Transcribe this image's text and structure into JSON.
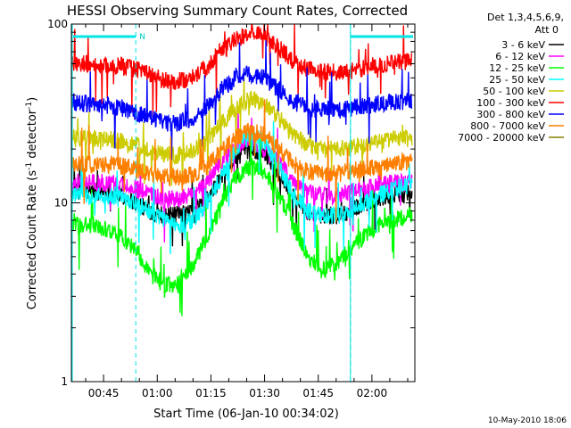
{
  "chart_data": {
    "type": "line",
    "title": "HESSI Observing Summary Count Rates, Corrected",
    "xlabel": "Start Time (06-Jan-10 00:34:02)",
    "ylabel": "Corrected Count Rate (s⁻¹ detector⁻¹)",
    "ylabel_parts": {
      "base": "Corrected Count Rate (s",
      "sup1": "-1",
      "mid": " detector",
      "sup2": "-1",
      "end": ")"
    },
    "date_stamp": "10-May-2010 18:06",
    "x_unit": "minutes",
    "xlim": [
      36,
      132
    ],
    "ylim": [
      1,
      100
    ],
    "yscale": "log",
    "y_tick_labels": [
      {
        "value": 1,
        "label": "1"
      },
      {
        "value": 10,
        "label": "10"
      },
      {
        "value": 100,
        "label": "100"
      }
    ],
    "x_tick_labels": [
      {
        "value": 45,
        "label": "00:45"
      },
      {
        "value": 60,
        "label": "01:00"
      },
      {
        "value": 75,
        "label": "01:15"
      },
      {
        "value": 90,
        "label": "01:30"
      },
      {
        "value": 105,
        "label": "01:45"
      },
      {
        "value": 120,
        "label": "02:00"
      }
    ],
    "legend": {
      "header": [
        "Det 1,3,4,5,6,9,",
        "Att 0"
      ],
      "placement": "right"
    },
    "night_markers": [
      {
        "x": 54,
        "label": "N"
      },
      {
        "x": 114,
        "label": ""
      }
    ],
    "saa_segments": [
      [
        36.5,
        54
      ],
      [
        114,
        131.5
      ]
    ],
    "x_centers": [
      38,
      42,
      46,
      50,
      54,
      58,
      62,
      66,
      70,
      74,
      78,
      82,
      86,
      90,
      94,
      98,
      102,
      106,
      110,
      114,
      118,
      122,
      126,
      130
    ],
    "series": [
      {
        "name": "3 - 6 keV",
        "color": "#000000",
        "values": [
          11.5,
          11.5,
          11.5,
          11,
          10,
          9,
          8.5,
          8.5,
          9,
          10.5,
          14,
          18,
          20,
          19,
          15,
          11,
          9,
          8.5,
          8.5,
          9,
          10,
          10.5,
          11,
          11.5
        ]
      },
      {
        "name": "6 - 12 keV",
        "color": "#ff00ff",
        "values": [
          13,
          13,
          13,
          12.5,
          12,
          11,
          10.5,
          10.5,
          11,
          13,
          17,
          21,
          22,
          20,
          17,
          13,
          11.5,
          11,
          11,
          11.5,
          12,
          13,
          13,
          13
        ]
      },
      {
        "name": "12 - 25 keV",
        "color": "#00ff00",
        "values": [
          7.5,
          7.5,
          7,
          6.5,
          5.5,
          4,
          3.5,
          3.5,
          4.5,
          6.5,
          10,
          14,
          16,
          15,
          11,
          7.5,
          5,
          4.2,
          4.5,
          5.5,
          6.5,
          7.5,
          8,
          8.5
        ]
      },
      {
        "name": "25 - 50 keV",
        "color": "#00ffff",
        "values": [
          11,
          11,
          11,
          10.5,
          10,
          9,
          8,
          7.5,
          8,
          10,
          14,
          20,
          24,
          22,
          16,
          11,
          9,
          8.5,
          8.5,
          9,
          10,
          11,
          12,
          12.5
        ]
      },
      {
        "name": "50 - 100 keV",
        "color": "#cccc00",
        "values": [
          23,
          23,
          23,
          22,
          21,
          19.5,
          18.5,
          18.5,
          19.5,
          22,
          28,
          34,
          38,
          36,
          30,
          24,
          21,
          20,
          20,
          20.5,
          21,
          22,
          23,
          23
        ]
      },
      {
        "name": "100 - 300 keV",
        "color": "#ff0000",
        "values": [
          60,
          60,
          59,
          58,
          56,
          52,
          48,
          48,
          50,
          58,
          70,
          82,
          90,
          86,
          74,
          62,
          56,
          54,
          54,
          55,
          57,
          59,
          61,
          62
        ]
      },
      {
        "name": "300 - 800 keV",
        "color": "#0000ff",
        "values": [
          36,
          36,
          35,
          34,
          32,
          30,
          28,
          28,
          30,
          35,
          43,
          50,
          53,
          50,
          43,
          37,
          34,
          33,
          33,
          34,
          35,
          36,
          37,
          37
        ]
      },
      {
        "name": "800 - 7000 keV",
        "color": "#ff8000",
        "values": [
          16.5,
          16.5,
          16.5,
          16,
          15.5,
          14.5,
          14,
          14,
          14.5,
          16,
          19.5,
          23,
          25,
          24,
          20,
          16.5,
          15,
          14.5,
          14.5,
          15,
          15.5,
          16,
          16.5,
          17
        ]
      },
      {
        "name": "7000 - 20000 keV",
        "color": "#808000",
        "values": []
      }
    ]
  }
}
